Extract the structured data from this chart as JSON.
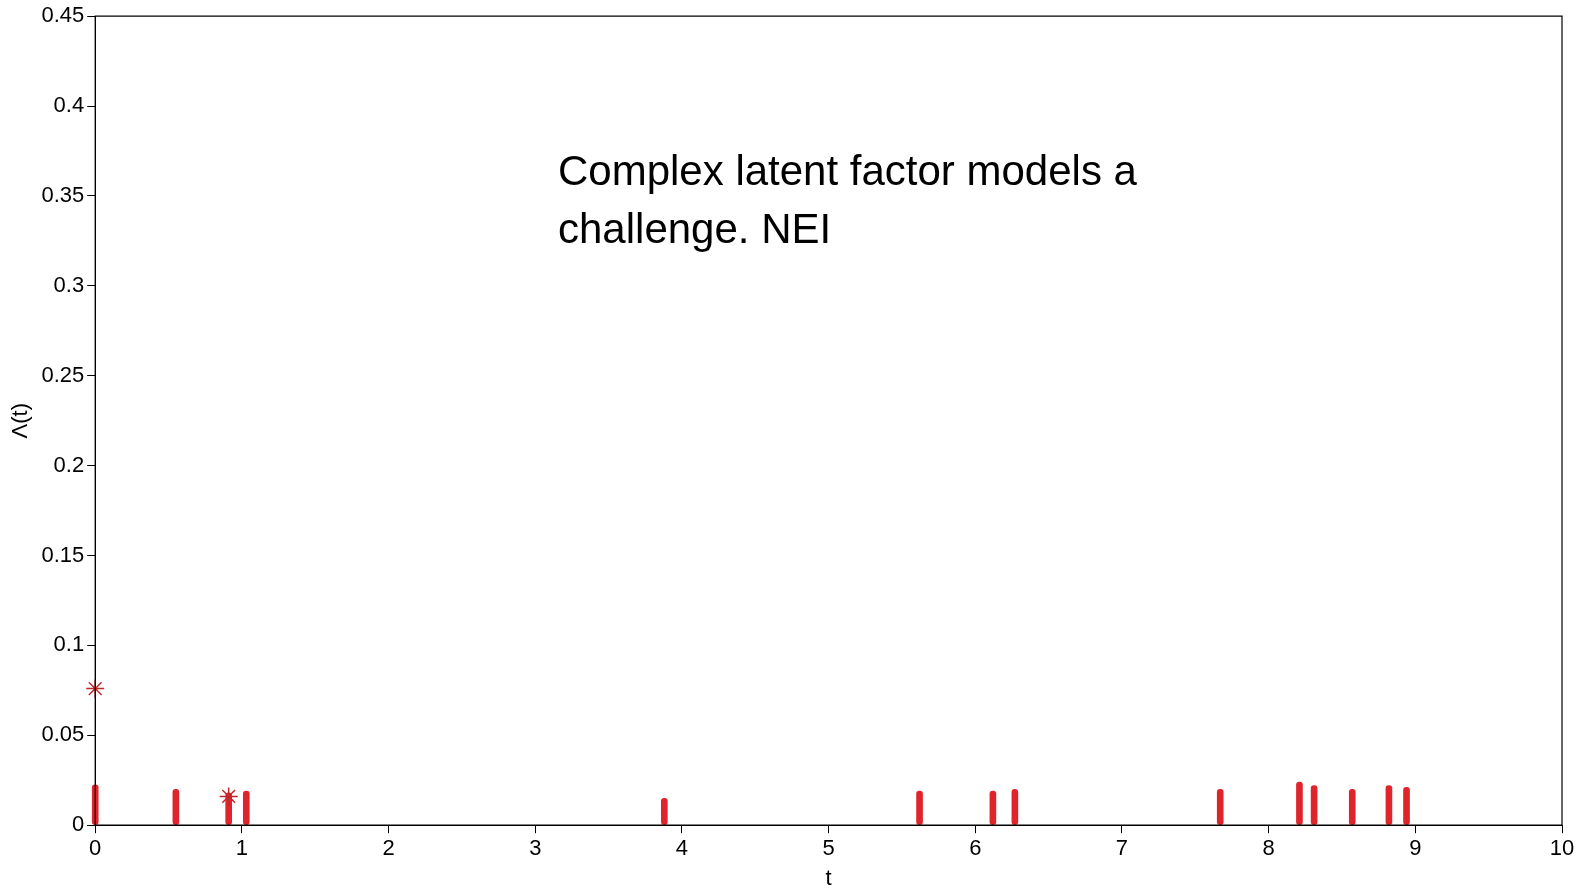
{
  "chart_data": {
    "type": "bar",
    "xlabel": "t",
    "ylabel": "Λ(t)",
    "annotations": [
      "Complex latent factor models a challenge.  NEI"
    ],
    "xlim": [
      0,
      10
    ],
    "xticks": [
      0,
      1,
      2,
      3,
      4,
      5,
      6,
      7,
      8,
      9,
      10
    ],
    "ylim": [
      0,
      0.45
    ],
    "yticks": [
      0,
      0.05,
      0.1,
      0.15,
      0.2,
      0.25,
      0.3,
      0.35,
      0.4,
      0.45
    ],
    "grid": false,
    "legend": false,
    "series": [
      {
        "color": "#e0242c",
        "x": [
          0,
          0.55,
          0.91,
          1.03,
          3.88,
          5.62,
          6.12,
          6.27,
          7.67,
          8.21,
          8.31,
          8.57,
          8.82,
          8.94
        ],
        "values": [
          0.0225,
          0.02,
          0.018,
          0.019,
          0.015,
          0.019,
          0.019,
          0.02,
          0.02,
          0.024,
          0.022,
          0.02,
          0.022,
          0.021
        ]
      },
      {
        "type": "scatter",
        "marker": "cross",
        "color": "#c0282c",
        "x": [
          0,
          0.91
        ],
        "values": [
          0.076,
          0.016
        ]
      }
    ]
  }
}
